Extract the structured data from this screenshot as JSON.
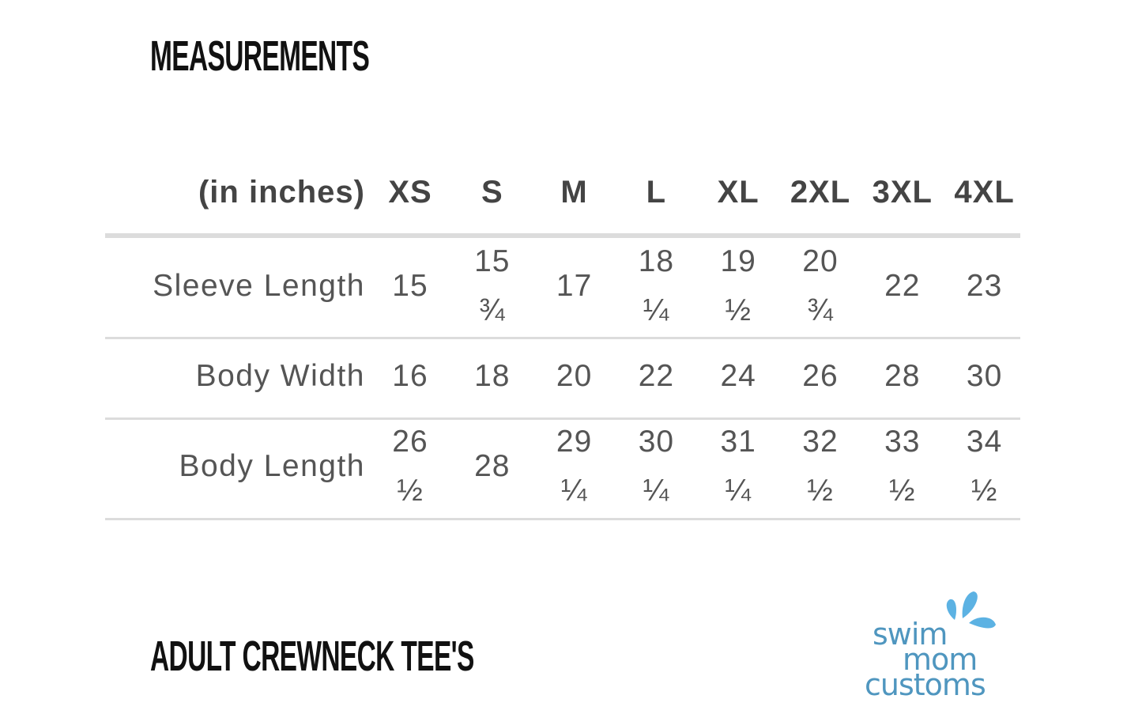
{
  "title": "MEASUREMENTS",
  "subtitle": "ADULT CREWNECK TEE'S",
  "table": {
    "unit_header": "(in inches)",
    "sizes": [
      "XS",
      "S",
      "M",
      "L",
      "XL",
      "2XL",
      "3XL",
      "4XL"
    ],
    "rows": [
      {
        "label": "Sleeve Length",
        "values": [
          "15",
          "15 ¾",
          "17",
          "18 ¼",
          "19 ½",
          "20 ¾",
          "22",
          "23"
        ]
      },
      {
        "label": "Body Width",
        "values": [
          "16",
          "18",
          "20",
          "22",
          "24",
          "26",
          "28",
          "30"
        ]
      },
      {
        "label": "Body Length",
        "values": [
          "26 ½",
          "28",
          "29 ¼",
          "30 ¼",
          "31 ¼",
          "32 ½",
          "33 ½",
          "34 ½"
        ]
      }
    ]
  },
  "logo": {
    "line1": "swim",
    "line2": "mom",
    "line3": "customs",
    "text_color": "#4f96bf",
    "drop_color": "#5cb2e3"
  },
  "colors": {
    "text": "#555555",
    "header": "#444444",
    "rule": "#dcdcdc"
  }
}
